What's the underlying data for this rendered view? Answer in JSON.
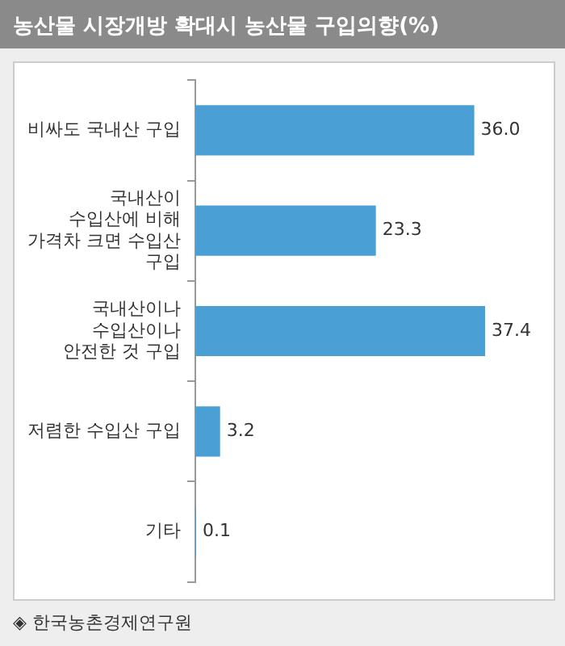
{
  "chart_data": {
    "type": "bar",
    "orientation": "horizontal",
    "title": "농산물 시장개방 확대시 농산물 구입의향(%)",
    "categories": [
      "비싸도 국내산 구입",
      "국내산이\n수입산에 비해\n가격차 크면 수입산\n구입",
      "국내산이나\n수입산이나\n안전한 것 구입",
      "저렴한 수입산 구입",
      "기타"
    ],
    "values": [
      36.0,
      23.3,
      37.4,
      3.2,
      0.1
    ],
    "value_labels": [
      "36.0",
      "23.3",
      "37.4",
      "3.2",
      "0.1"
    ],
    "color": "#4aa0d5",
    "annotations": [
      "◈ 한국농촌경제연구원"
    ]
  }
}
